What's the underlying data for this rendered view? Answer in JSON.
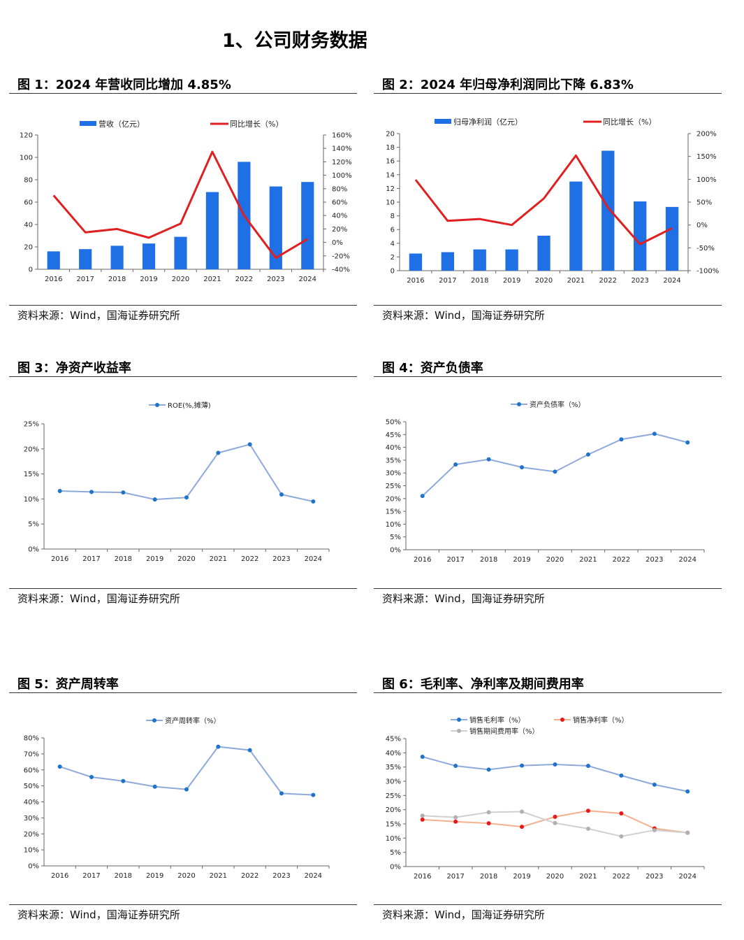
{
  "section_title": "1、公司财务数据",
  "figures": [
    {
      "title": "图 1：2024 年营收同比增加 4.85%",
      "source": "资料来源：Wind，国海证券研究所"
    },
    {
      "title": "图 2：2024 年归母净利润同比下降 6.83%",
      "source": "资料来源：Wind，国海证券研究所"
    },
    {
      "title": "图 3：净资产收益率",
      "source": "资料来源：Wind，国海证券研究所"
    },
    {
      "title": "图 4：资产负债率",
      "source": "资料来源：Wind，国海证券研究所"
    },
    {
      "title": "图 5：资产周转率",
      "source": "资料来源：Wind，国海证券研究所"
    },
    {
      "title": "图 6：毛利率、净利率及期间费用率",
      "source": "资料来源：Wind，国海证券研究所"
    }
  ],
  "colors": {
    "bar": "#1f6fe5",
    "growth_line": "#e02020",
    "soft_line": "#8eaadb",
    "dot": "#1f73c9",
    "net_line": "#f4b08c",
    "net_dot": "#e81818",
    "exp_line": "#d0d0d0",
    "exp_dot": "#b0b0b0"
  },
  "chart_data": [
    {
      "type": "bar",
      "categories": [
        "2016",
        "2017",
        "2018",
        "2019",
        "2020",
        "2021",
        "2022",
        "2023",
        "2024"
      ],
      "series": [
        {
          "name": "营收（亿元）",
          "type": "bar",
          "axis": "left",
          "values": [
            16,
            18,
            21,
            23,
            29,
            69,
            96,
            74,
            78
          ]
        },
        {
          "name": "同比增长（%）",
          "type": "line",
          "axis": "right",
          "values": [
            70,
            15,
            20,
            7,
            28,
            135,
            40,
            -23,
            5
          ]
        }
      ],
      "ylim": [
        0,
        120
      ],
      "y_ticks": [
        "0",
        "20",
        "40",
        "60",
        "80",
        "100",
        "120"
      ],
      "y2lim": [
        -40,
        160
      ],
      "y2_ticks": [
        "-40%",
        "-20%",
        "0%",
        "20%",
        "40%",
        "60%",
        "80%",
        "100%",
        "120%",
        "140%",
        "160%"
      ],
      "legend": "top"
    },
    {
      "type": "bar",
      "categories": [
        "2016",
        "2017",
        "2018",
        "2019",
        "2020",
        "2021",
        "2022",
        "2023",
        "2024"
      ],
      "series": [
        {
          "name": "归母净利润（亿元）",
          "type": "bar",
          "axis": "left",
          "values": [
            2.5,
            2.7,
            3.1,
            3.1,
            5.1,
            13.0,
            17.5,
            10.1,
            9.3
          ]
        },
        {
          "name": "同比增长（%）",
          "type": "line",
          "axis": "right",
          "values": [
            99,
            9,
            13,
            0,
            58,
            152,
            38,
            -42,
            -7
          ]
        }
      ],
      "ylim": [
        0,
        20
      ],
      "y_ticks": [
        "0",
        "2",
        "4",
        "6",
        "8",
        "10",
        "12",
        "14",
        "16",
        "18",
        "20"
      ],
      "y2lim": [
        -100,
        200
      ],
      "y2_ticks": [
        "-100%",
        "-50%",
        "0%",
        "50%",
        "100%",
        "150%",
        "200%"
      ],
      "legend": "top"
    },
    {
      "type": "line",
      "categories": [
        "2016",
        "2017",
        "2018",
        "2019",
        "2020",
        "2021",
        "2022",
        "2023",
        "2024"
      ],
      "series": [
        {
          "name": "ROE(%,摊薄)",
          "values": [
            11.6,
            11.4,
            11.3,
            9.9,
            10.3,
            19.2,
            20.9,
            10.9,
            9.5
          ]
        }
      ],
      "ylim": [
        0,
        25
      ],
      "y_ticks": [
        "0%",
        "5%",
        "10%",
        "15%",
        "20%",
        "25%"
      ],
      "legend": "top"
    },
    {
      "type": "line",
      "categories": [
        "2016",
        "2017",
        "2018",
        "2019",
        "2020",
        "2021",
        "2022",
        "2023",
        "2024"
      ],
      "series": [
        {
          "name": "资产负债率（%）",
          "values": [
            21,
            33.3,
            35.3,
            32.2,
            30.5,
            37.2,
            43.1,
            45.3,
            41.9
          ]
        }
      ],
      "ylim": [
        0,
        50
      ],
      "y_ticks": [
        "0%",
        "5%",
        "10%",
        "15%",
        "20%",
        "25%",
        "30%",
        "35%",
        "40%",
        "45%",
        "50%"
      ],
      "legend": "top"
    },
    {
      "type": "line",
      "categories": [
        "2016",
        "2017",
        "2018",
        "2019",
        "2020",
        "2021",
        "2022",
        "2023",
        "2024"
      ],
      "series": [
        {
          "name": "资产周转率（%）",
          "values": [
            62,
            55.5,
            53,
            49.5,
            47.8,
            74.5,
            72.3,
            45.3,
            44.3
          ]
        }
      ],
      "ylim": [
        0,
        80
      ],
      "y_ticks": [
        "0%",
        "10%",
        "20%",
        "30%",
        "40%",
        "50%",
        "60%",
        "70%",
        "80%"
      ],
      "legend": "top"
    },
    {
      "type": "line",
      "categories": [
        "2016",
        "2017",
        "2018",
        "2019",
        "2020",
        "2021",
        "2022",
        "2023",
        "2024"
      ],
      "series": [
        {
          "name": "销售毛利率（%）",
          "values": [
            38.6,
            35.4,
            34.1,
            35.5,
            35.9,
            35.4,
            32.0,
            28.8,
            26.4
          ]
        },
        {
          "name": "销售净利率（%）",
          "values": [
            16.5,
            15.8,
            15.2,
            14.0,
            17.5,
            19.6,
            18.7,
            13.4,
            11.9
          ]
        },
        {
          "name": "销售期间费用率（%）",
          "values": [
            17.9,
            17.3,
            19.1,
            19.3,
            15.3,
            13.3,
            10.6,
            12.8,
            11.9
          ]
        }
      ],
      "ylim": [
        0,
        45
      ],
      "y_ticks": [
        "0%",
        "5%",
        "10%",
        "15%",
        "20%",
        "25%",
        "30%",
        "35%",
        "40%",
        "45%"
      ],
      "legend": "top"
    }
  ]
}
